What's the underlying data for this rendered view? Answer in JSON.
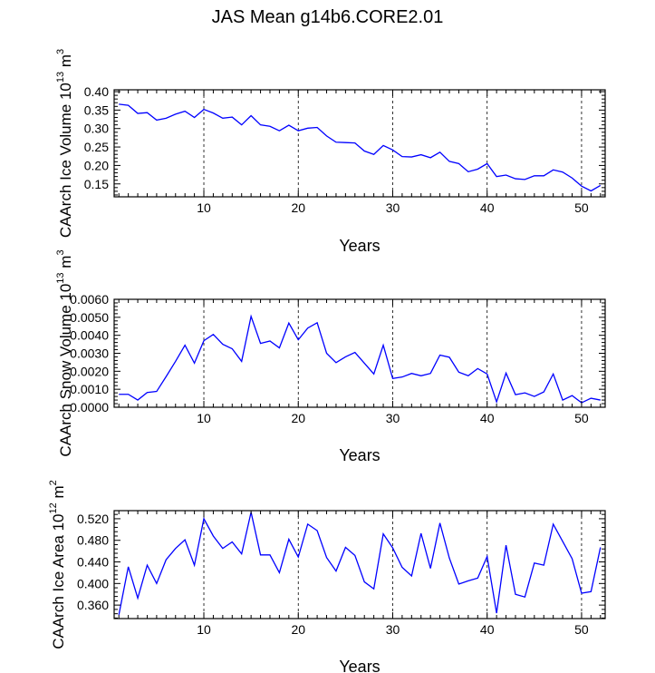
{
  "title": "JAS Mean g14b6.CORE2.01",
  "colors": {
    "line": "#0000ff",
    "axis": "#000000",
    "grid": "#000000"
  },
  "chart_data": [
    {
      "type": "line",
      "ylabel": "CAArch Ice Volume",
      "yunit_base": "10",
      "yunit_exp": "13",
      "yunit_tail": "m",
      "yunit_tail_exp": "3",
      "xlabel": "Years",
      "xlim": [
        0.5,
        52.5
      ],
      "ylim": [
        0.115,
        0.405
      ],
      "yticks": [
        0.15,
        0.2,
        0.25,
        0.3,
        0.35,
        0.4
      ],
      "yticklabels": [
        "0.15",
        "0.20",
        "0.25",
        "0.30",
        "0.35",
        "0.40"
      ],
      "xticks": [
        10,
        20,
        30,
        40,
        50
      ],
      "xticklabels": [
        "10",
        "20",
        "30",
        "40",
        "50"
      ],
      "x": [
        1,
        2,
        3,
        4,
        5,
        6,
        7,
        8,
        9,
        10,
        11,
        12,
        13,
        14,
        15,
        16,
        17,
        18,
        19,
        20,
        21,
        22,
        23,
        24,
        25,
        26,
        27,
        28,
        29,
        30,
        31,
        32,
        33,
        34,
        35,
        36,
        37,
        38,
        39,
        40,
        41,
        42,
        43,
        44,
        45,
        46,
        47,
        48,
        49,
        50,
        51,
        52
      ],
      "values": [
        0.366,
        0.363,
        0.341,
        0.343,
        0.323,
        0.328,
        0.339,
        0.347,
        0.33,
        0.352,
        0.342,
        0.328,
        0.331,
        0.31,
        0.335,
        0.31,
        0.306,
        0.294,
        0.309,
        0.294,
        0.301,
        0.303,
        0.28,
        0.263,
        0.262,
        0.261,
        0.239,
        0.23,
        0.254,
        0.242,
        0.224,
        0.223,
        0.229,
        0.221,
        0.236,
        0.211,
        0.205,
        0.183,
        0.19,
        0.205,
        0.17,
        0.174,
        0.164,
        0.162,
        0.172,
        0.172,
        0.188,
        0.182,
        0.166,
        0.144,
        0.131,
        0.146
      ]
    },
    {
      "type": "line",
      "ylabel": "CAArch Snow Volume",
      "yunit_base": "10",
      "yunit_exp": "13",
      "yunit_tail": "m",
      "yunit_tail_exp": "3",
      "xlabel": "Years",
      "xlim": [
        0.5,
        52.5
      ],
      "ylim": [
        0.0,
        0.006
      ],
      "yticks": [
        0.0,
        0.001,
        0.002,
        0.003,
        0.004,
        0.005,
        0.006
      ],
      "yticklabels": [
        "0.0000",
        "0.0010",
        "0.0020",
        "0.0030",
        "0.0040",
        "0.0050",
        "0.0060"
      ],
      "xticks": [
        10,
        20,
        30,
        40,
        50
      ],
      "xticklabels": [
        "10",
        "20",
        "30",
        "40",
        "50"
      ],
      "x": [
        1,
        2,
        3,
        4,
        5,
        6,
        7,
        8,
        9,
        10,
        11,
        12,
        13,
        14,
        15,
        16,
        17,
        18,
        19,
        20,
        21,
        22,
        23,
        24,
        25,
        26,
        27,
        28,
        29,
        30,
        31,
        32,
        33,
        34,
        35,
        36,
        37,
        38,
        39,
        40,
        41,
        42,
        43,
        44,
        45,
        46,
        47,
        48,
        49,
        50,
        51,
        52
      ],
      "values": [
        0.00072,
        0.00072,
        0.0004,
        0.00082,
        0.00088,
        0.0017,
        0.00255,
        0.00345,
        0.00245,
        0.0037,
        0.00405,
        0.0035,
        0.00325,
        0.00255,
        0.00505,
        0.00355,
        0.00368,
        0.0033,
        0.00468,
        0.00375,
        0.0044,
        0.0047,
        0.003,
        0.00248,
        0.0028,
        0.00305,
        0.00245,
        0.00185,
        0.00345,
        0.0016,
        0.00168,
        0.00188,
        0.00175,
        0.00188,
        0.0029,
        0.00278,
        0.00195,
        0.00175,
        0.00215,
        0.00185,
        0.0003,
        0.0019,
        0.0007,
        0.0008,
        0.0006,
        0.00085,
        0.00185,
        0.0004,
        0.00065,
        0.00025,
        0.0005,
        0.0004
      ]
    },
    {
      "type": "line",
      "ylabel": "CAArch Ice Area",
      "yunit_base": "10",
      "yunit_exp": "12",
      "yunit_tail": "m",
      "yunit_tail_exp": "2",
      "xlabel": "Years",
      "xlim": [
        0.5,
        52.5
      ],
      "ylim": [
        0.335,
        0.535
      ],
      "yticks": [
        0.36,
        0.4,
        0.44,
        0.48,
        0.52
      ],
      "yticklabels": [
        "0.360",
        "0.400",
        "0.440",
        "0.480",
        "0.520"
      ],
      "xticks": [
        10,
        20,
        30,
        40,
        50
      ],
      "xticklabels": [
        "10",
        "20",
        "30",
        "40",
        "50"
      ],
      "x": [
        1,
        2,
        3,
        4,
        5,
        6,
        7,
        8,
        9,
        10,
        11,
        12,
        13,
        14,
        15,
        16,
        17,
        18,
        19,
        20,
        21,
        22,
        23,
        24,
        25,
        26,
        27,
        28,
        29,
        30,
        31,
        32,
        33,
        34,
        35,
        36,
        37,
        38,
        39,
        40,
        41,
        42,
        43,
        44,
        45,
        46,
        47,
        48,
        49,
        50,
        51,
        52
      ],
      "values": [
        0.342,
        0.431,
        0.373,
        0.434,
        0.4,
        0.444,
        0.465,
        0.481,
        0.434,
        0.52,
        0.488,
        0.465,
        0.477,
        0.455,
        0.532,
        0.453,
        0.453,
        0.42,
        0.482,
        0.449,
        0.51,
        0.498,
        0.448,
        0.423,
        0.467,
        0.452,
        0.403,
        0.39,
        0.492,
        0.466,
        0.43,
        0.414,
        0.493,
        0.428,
        0.512,
        0.447,
        0.399,
        0.405,
        0.41,
        0.45,
        0.345,
        0.471,
        0.38,
        0.375,
        0.438,
        0.434,
        0.51,
        0.478,
        0.446,
        0.382,
        0.385,
        0.467
      ]
    }
  ]
}
